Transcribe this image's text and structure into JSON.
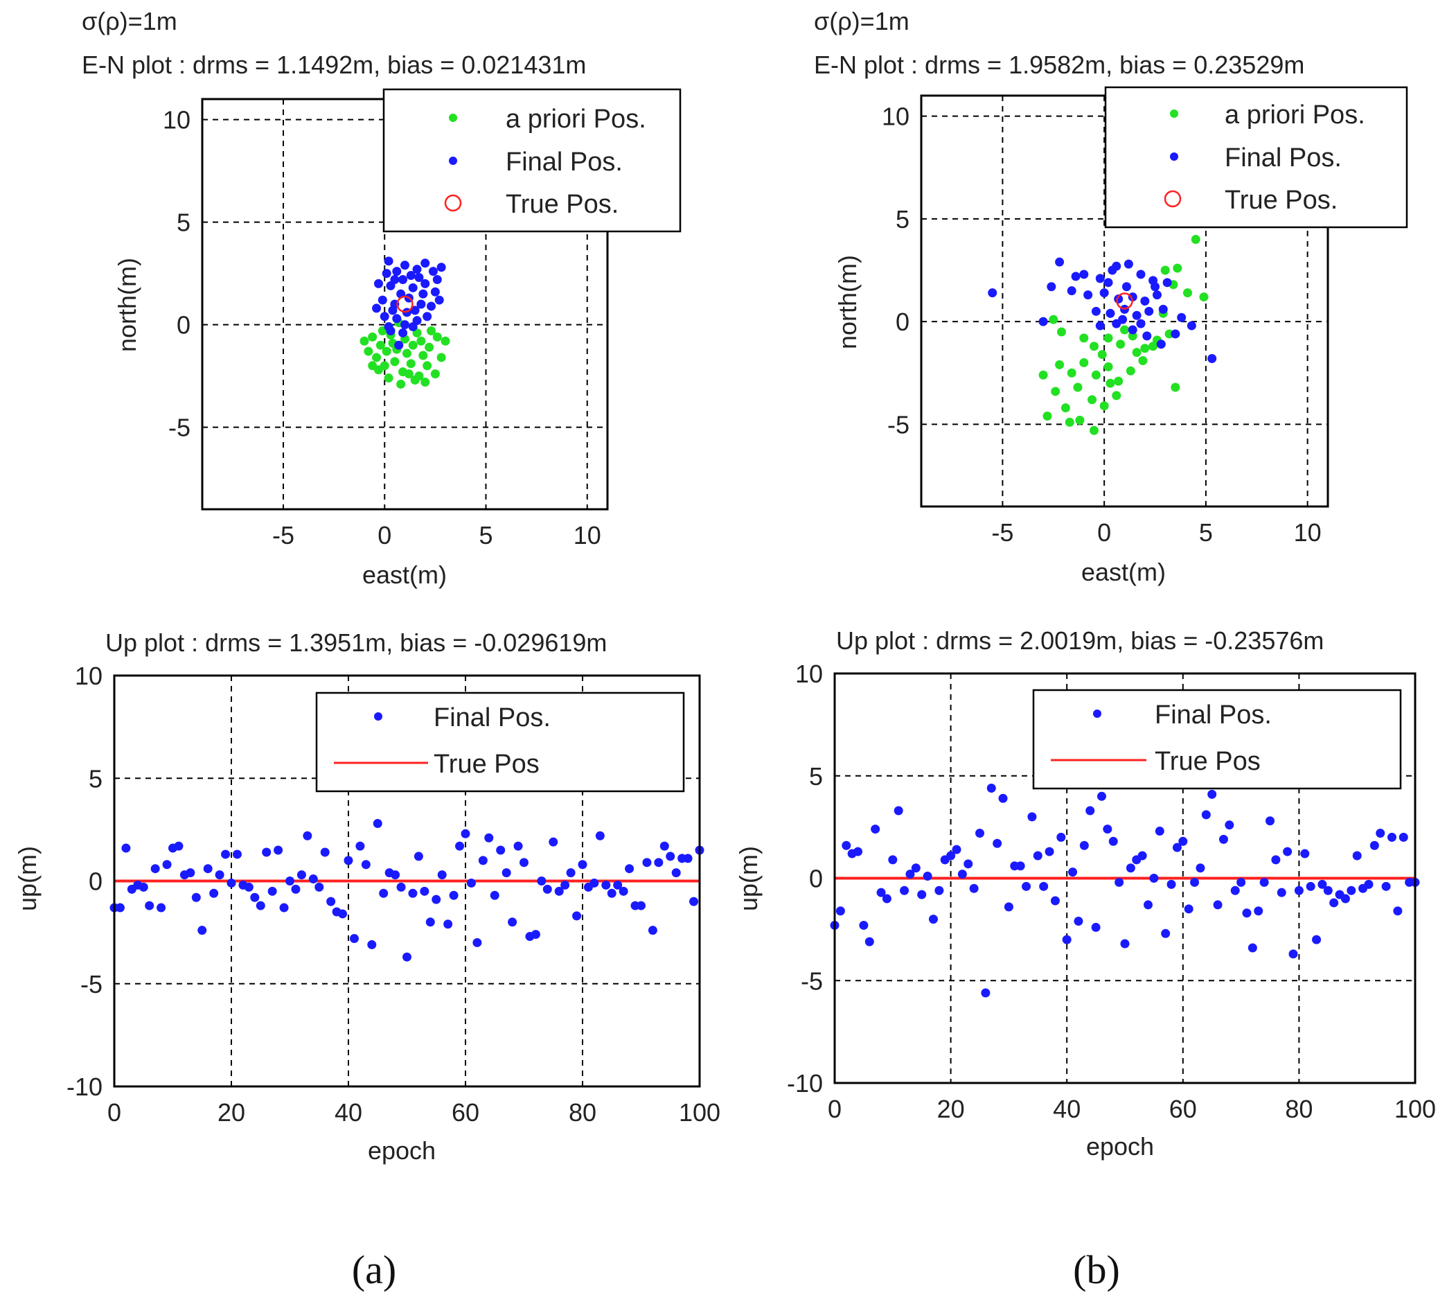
{
  "figure": {
    "caption_a": "(a)",
    "caption_b": "(b)"
  },
  "colors": {
    "apriori": "#22e022",
    "final": "#1a1aff",
    "true": "#ff2020"
  },
  "chart_data": [
    {
      "id": "a_en",
      "type": "scatter",
      "title_line1": "σ(ρ)=1m",
      "title_line2": "E-N plot :   drms = 1.1492m, bias = 0.021431m",
      "xlabel": "east(m)",
      "ylabel": "north(m)",
      "xlim": [
        -9,
        11
      ],
      "ylim": [
        -9,
        11
      ],
      "xticks": [
        -5,
        0,
        5,
        10
      ],
      "yticks": [
        -5,
        0,
        5,
        10
      ],
      "grid": true,
      "legend": {
        "position": "top-right",
        "entries": [
          "a priori Pos.",
          "Final Pos.",
          "True Pos."
        ]
      },
      "series": [
        {
          "name": "a priori Pos.",
          "marker": "dot",
          "color": "#22e022",
          "points": [
            [
              -1.0,
              -0.8
            ],
            [
              -0.6,
              -0.6
            ],
            [
              -0.2,
              -1.0
            ],
            [
              0.3,
              -0.5
            ],
            [
              0.6,
              -1.2
            ],
            [
              1.0,
              -0.7
            ],
            [
              1.4,
              -1.0
            ],
            [
              1.8,
              -0.8
            ],
            [
              2.2,
              -1.1
            ],
            [
              2.6,
              -0.6
            ],
            [
              3.0,
              -0.8
            ],
            [
              -0.4,
              -1.6
            ],
            [
              0.0,
              -2.0
            ],
            [
              0.5,
              -1.8
            ],
            [
              0.9,
              -2.3
            ],
            [
              1.3,
              -1.9
            ],
            [
              1.7,
              -2.5
            ],
            [
              2.1,
              -2.0
            ],
            [
              2.5,
              -2.4
            ],
            [
              0.2,
              -2.6
            ],
            [
              0.8,
              -2.9
            ],
            [
              1.5,
              -2.7
            ],
            [
              -0.8,
              -1.3
            ],
            [
              -0.1,
              -0.3
            ],
            [
              0.7,
              0.1
            ],
            [
              1.9,
              -1.5
            ],
            [
              2.8,
              -1.6
            ],
            [
              -0.3,
              -2.2
            ],
            [
              1.1,
              -1.4
            ],
            [
              2.3,
              -0.3
            ],
            [
              0.4,
              -0.9
            ],
            [
              1.6,
              -0.4
            ],
            [
              -0.6,
              -2.0
            ],
            [
              2.0,
              -2.8
            ],
            [
              1.2,
              -2.4
            ],
            [
              0.1,
              -1.3
            ]
          ]
        },
        {
          "name": "Final Pos.",
          "marker": "dot",
          "color": "#1a1aff",
          "points": [
            [
              0.2,
              3.1
            ],
            [
              0.6,
              2.6
            ],
            [
              1.0,
              2.9
            ],
            [
              1.6,
              2.7
            ],
            [
              2.0,
              3.0
            ],
            [
              2.4,
              2.6
            ],
            [
              2.8,
              2.8
            ],
            [
              -0.3,
              2.0
            ],
            [
              0.3,
              1.9
            ],
            [
              0.9,
              2.2
            ],
            [
              1.4,
              1.8
            ],
            [
              2.0,
              2.0
            ],
            [
              2.5,
              1.6
            ],
            [
              -0.1,
              1.2
            ],
            [
              0.5,
              1.0
            ],
            [
              1.2,
              1.3
            ],
            [
              1.8,
              1.0
            ],
            [
              2.3,
              0.9
            ],
            [
              0.0,
              0.4
            ],
            [
              0.6,
              0.3
            ],
            [
              1.1,
              0.6
            ],
            [
              1.6,
              0.2
            ],
            [
              2.1,
              0.4
            ],
            [
              0.3,
              -0.3
            ],
            [
              0.9,
              -0.4
            ],
            [
              1.4,
              -0.1
            ],
            [
              0.7,
              -1.0
            ],
            [
              0.1,
              2.5
            ],
            [
              1.3,
              2.4
            ],
            [
              2.6,
              2.2
            ],
            [
              0.8,
              1.5
            ],
            [
              1.9,
              1.5
            ],
            [
              -0.4,
              0.8
            ],
            [
              1.5,
              0.7
            ],
            [
              0.4,
              0.7
            ],
            [
              2.7,
              1.2
            ],
            [
              0.2,
              -0.1
            ],
            [
              1.0,
              0.0
            ],
            [
              1.7,
              2.3
            ],
            [
              0.5,
              2.2
            ]
          ]
        },
        {
          "name": "True Pos.",
          "marker": "circle",
          "color": "#ff2020",
          "points": [
            [
              1.0,
              1.0
            ]
          ]
        }
      ]
    },
    {
      "id": "b_en",
      "type": "scatter",
      "title_line1": "σ(ρ)=1m",
      "title_line2": "E-N plot :    drms = 1.9582m, bias = 0.23529m",
      "xlabel": "east(m)",
      "ylabel": "north(m)",
      "xlim": [
        -9,
        11
      ],
      "ylim": [
        -9,
        11
      ],
      "xticks": [
        -5,
        0,
        5,
        10
      ],
      "yticks": [
        -5,
        0,
        5,
        10
      ],
      "grid": true,
      "legend": {
        "position": "top-right",
        "entries": [
          "a priori Pos.",
          "Final Pos.",
          "True Pos."
        ]
      },
      "series": [
        {
          "name": "a priori Pos.",
          "marker": "dot",
          "color": "#22e022",
          "points": [
            [
              4.5,
              4.0
            ],
            [
              3.0,
              2.5
            ],
            [
              3.6,
              2.6
            ],
            [
              4.1,
              1.4
            ],
            [
              4.9,
              1.2
            ],
            [
              3.4,
              1.8
            ],
            [
              -2.5,
              0.1
            ],
            [
              -2.1,
              -0.5
            ],
            [
              -1.0,
              -0.8
            ],
            [
              -0.5,
              -1.2
            ],
            [
              0.2,
              -0.8
            ],
            [
              0.8,
              -1.1
            ],
            [
              1.4,
              -0.7
            ],
            [
              2.0,
              -1.3
            ],
            [
              2.6,
              -0.9
            ],
            [
              3.2,
              -0.6
            ],
            [
              -3.0,
              -2.6
            ],
            [
              -2.2,
              -2.1
            ],
            [
              -1.6,
              -2.5
            ],
            [
              -1.0,
              -2.0
            ],
            [
              -0.4,
              -2.6
            ],
            [
              0.2,
              -2.2
            ],
            [
              0.7,
              -2.9
            ],
            [
              1.3,
              -2.4
            ],
            [
              1.9,
              -1.9
            ],
            [
              -2.8,
              -4.6
            ],
            [
              -1.9,
              -4.2
            ],
            [
              -1.2,
              -4.8
            ],
            [
              -0.6,
              -3.8
            ],
            [
              0.0,
              -4.1
            ],
            [
              0.6,
              -3.6
            ],
            [
              -1.7,
              -4.9
            ],
            [
              -0.5,
              -5.3
            ],
            [
              3.5,
              -3.2
            ],
            [
              2.4,
              -1.2
            ],
            [
              -0.1,
              -1.6
            ],
            [
              1.0,
              -0.4
            ],
            [
              -2.4,
              -3.4
            ],
            [
              0.3,
              -3.0
            ],
            [
              1.6,
              -1.5
            ],
            [
              -1.3,
              -3.2
            ],
            [
              2.9,
              0.4
            ]
          ]
        },
        {
          "name": "Final Pos.",
          "marker": "dot",
          "color": "#1a1aff",
          "points": [
            [
              -5.5,
              1.4
            ],
            [
              -2.2,
              2.9
            ],
            [
              -1.0,
              2.3
            ],
            [
              -0.2,
              2.1
            ],
            [
              0.6,
              2.7
            ],
            [
              1.2,
              2.8
            ],
            [
              1.8,
              2.3
            ],
            [
              2.4,
              2.0
            ],
            [
              -2.6,
              1.7
            ],
            [
              -1.6,
              1.5
            ],
            [
              -0.8,
              1.3
            ],
            [
              0.0,
              1.4
            ],
            [
              0.7,
              1.1
            ],
            [
              1.4,
              1.2
            ],
            [
              2.0,
              1.0
            ],
            [
              2.6,
              1.3
            ],
            [
              -0.4,
              0.5
            ],
            [
              0.3,
              0.4
            ],
            [
              1.0,
              0.6
            ],
            [
              1.6,
              0.3
            ],
            [
              2.2,
              0.5
            ],
            [
              2.9,
              0.6
            ],
            [
              -0.2,
              -0.2
            ],
            [
              0.6,
              -0.1
            ],
            [
              1.4,
              -0.4
            ],
            [
              2.1,
              -0.7
            ],
            [
              2.8,
              -1.1
            ],
            [
              3.5,
              -0.6
            ],
            [
              4.3,
              -0.2
            ],
            [
              5.3,
              -1.8
            ],
            [
              3.8,
              0.2
            ],
            [
              -3.0,
              0.0
            ],
            [
              0.2,
              1.9
            ],
            [
              1.1,
              1.7
            ],
            [
              2.5,
              1.7
            ],
            [
              -1.4,
              2.2
            ],
            [
              0.9,
              0.1
            ],
            [
              1.8,
              -0.1
            ],
            [
              3.1,
              1.9
            ],
            [
              0.4,
              2.5
            ]
          ]
        },
        {
          "name": "True Pos.",
          "marker": "circle",
          "color": "#ff2020",
          "points": [
            [
              1.0,
              1.0
            ]
          ]
        }
      ]
    },
    {
      "id": "a_up",
      "type": "scatter",
      "title_line1": "Up plot : drms = 1.3951m,  bias = -0.029619m",
      "xlabel": "epoch",
      "ylabel": "up(m)",
      "xlim": [
        0,
        100
      ],
      "ylim": [
        -10,
        10
      ],
      "xticks": [
        0,
        20,
        40,
        60,
        80,
        100
      ],
      "yticks": [
        -10,
        -5,
        0,
        5,
        10
      ],
      "grid": true,
      "legend": {
        "position": "top-right",
        "entries": [
          "Final Pos.",
          "True Pos"
        ]
      },
      "true_value": 0,
      "series": [
        {
          "name": "Final Pos.",
          "marker": "dot",
          "color": "#1a1aff",
          "values": [
            -1.3,
            -1.3,
            1.6,
            -0.4,
            -0.2,
            -0.3,
            -1.2,
            0.6,
            -1.3,
            0.8,
            1.6,
            1.7,
            0.3,
            0.4,
            -0.8,
            -2.4,
            0.6,
            -0.6,
            0.3,
            1.3,
            -0.1,
            1.3,
            -0.2,
            -0.3,
            -0.8,
            -1.2,
            1.4,
            -0.5,
            1.5,
            -1.3,
            0.0,
            -0.4,
            0.3,
            2.2,
            0.1,
            -0.3,
            1.4,
            -1.0,
            -1.5,
            -1.6,
            1.0,
            -2.8,
            1.7,
            0.8,
            -3.1,
            2.8,
            -0.6,
            0.4,
            0.3,
            -0.3,
            -3.7,
            -0.6,
            1.2,
            -0.5,
            -2.0,
            -0.9,
            0.3,
            -2.1,
            -0.7,
            1.7,
            2.3,
            -0.1,
            -3.0,
            1.0,
            2.1,
            -0.7,
            1.5,
            0.4,
            -2.0,
            1.7,
            0.9,
            -2.7,
            -2.6,
            0.0,
            -0.4,
            1.9,
            -0.5,
            -0.2,
            0.4,
            -1.7,
            0.8,
            -0.3,
            -0.1,
            2.2,
            -0.2,
            -0.6,
            -0.2,
            -0.5,
            0.6,
            -1.2,
            -1.2,
            0.9,
            -2.4,
            0.9,
            1.7,
            1.2,
            0.4,
            1.1,
            1.1,
            -1.0,
            1.5
          ]
        }
      ]
    },
    {
      "id": "b_up",
      "type": "scatter",
      "title_line1": "Up plot : drms = 2.0019m,  bias = -0.23576m",
      "xlabel": "epoch",
      "ylabel": "up(m)",
      "xlim": [
        0,
        100
      ],
      "ylim": [
        -10,
        10
      ],
      "xticks": [
        0,
        20,
        40,
        60,
        80,
        100
      ],
      "yticks": [
        -10,
        -5,
        0,
        5,
        10
      ],
      "grid": true,
      "legend": {
        "position": "top-right",
        "entries": [
          "Final Pos.",
          "True Pos"
        ]
      },
      "true_value": 0,
      "series": [
        {
          "name": "Final Pos.",
          "marker": "dot",
          "color": "#1a1aff",
          "values": [
            -2.3,
            -1.6,
            1.6,
            1.2,
            1.3,
            -2.3,
            -3.1,
            2.4,
            -0.7,
            -1.0,
            0.9,
            3.3,
            -0.6,
            0.2,
            0.5,
            -0.8,
            0.1,
            -2.0,
            -0.6,
            0.9,
            1.1,
            1.4,
            0.2,
            0.7,
            -0.5,
            2.2,
            -5.6,
            4.4,
            1.7,
            3.9,
            -1.4,
            0.6,
            0.6,
            -0.4,
            3.0,
            1.1,
            -0.4,
            1.3,
            -1.1,
            2.0,
            -3.0,
            0.3,
            -2.1,
            1.6,
            3.3,
            -2.4,
            4.0,
            2.4,
            1.8,
            -0.2,
            -3.2,
            0.5,
            0.9,
            1.1,
            -1.3,
            0.0,
            2.3,
            -2.7,
            -0.3,
            1.5,
            1.8,
            -1.5,
            -0.2,
            0.5,
            3.1,
            4.1,
            -1.3,
            1.9,
            2.6,
            -0.6,
            -0.2,
            -1.7,
            -3.4,
            -1.6,
            -0.2,
            2.8,
            0.9,
            -0.7,
            1.3,
            -3.7,
            -0.6,
            1.2,
            -0.4,
            -3.0,
            -0.3,
            -0.6,
            -1.2,
            -0.8,
            -1.0,
            -0.6,
            1.1,
            -0.5,
            -0.3,
            1.6,
            2.2,
            -0.4,
            2.0,
            -1.6,
            2.0,
            -0.2,
            -0.2
          ]
        }
      ]
    }
  ]
}
